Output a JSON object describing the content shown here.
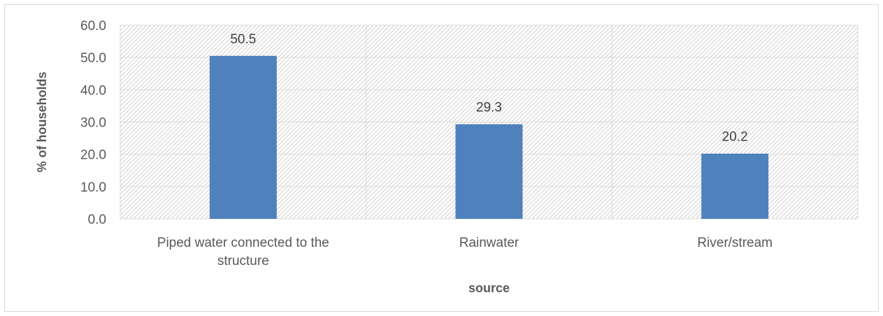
{
  "chart_data": {
    "type": "bar",
    "title": "",
    "xlabel": "source",
    "ylabel": "% of households",
    "categories": [
      [
        "Piped water connected to the",
        "structure"
      ],
      [
        "Rainwater"
      ],
      [
        "River/stream"
      ]
    ],
    "values": [
      50.5,
      29.3,
      20.2
    ],
    "value_labels": [
      "50.5",
      "29.3",
      "20.2"
    ],
    "ylim": [
      0,
      60
    ],
    "yticks": [
      0,
      10,
      20,
      30,
      40,
      50,
      60
    ],
    "ytick_labels": [
      "0.0",
      "10.0",
      "20.0",
      "30.0",
      "40.0",
      "50.0",
      "60.0"
    ],
    "grid": true,
    "legend": "none",
    "colors": {
      "bar": "#4f81bd",
      "grid": "#d9d9d9",
      "hatch": "#c8c8c8",
      "text": "#595959"
    }
  }
}
